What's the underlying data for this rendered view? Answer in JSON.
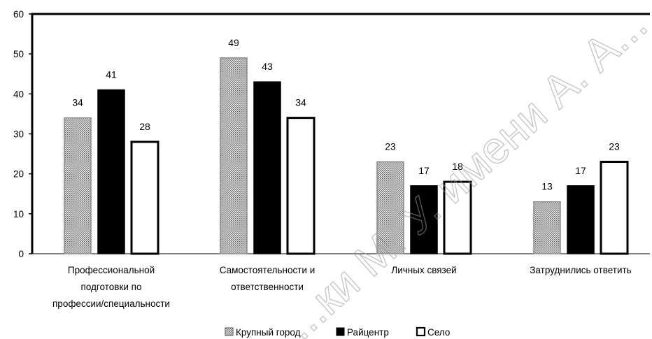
{
  "chart_data": {
    "type": "bar",
    "categories": [
      [
        "Профессиональной",
        "подготовки по",
        "профессии/специальности"
      ],
      [
        "Самостоятельности и",
        "ответственности"
      ],
      [
        "Личных связей"
      ],
      [
        "Затруднились ответить"
      ]
    ],
    "series": [
      {
        "name": "Крупный город",
        "values": [
          34,
          49,
          23,
          13
        ],
        "fill": "dotted"
      },
      {
        "name": "Райцентр",
        "values": [
          41,
          43,
          17,
          17
        ],
        "fill": "#000000"
      },
      {
        "name": "Село",
        "values": [
          28,
          34,
          18,
          23
        ],
        "fill": "#ffffff"
      }
    ],
    "ylim": [
      0,
      60
    ],
    "yticks": [
      0,
      10,
      20,
      30,
      40,
      50,
      60
    ],
    "legend_position": "bottom-center",
    "watermark": "...ки М. У. имени А. А...",
    "grid": false
  }
}
